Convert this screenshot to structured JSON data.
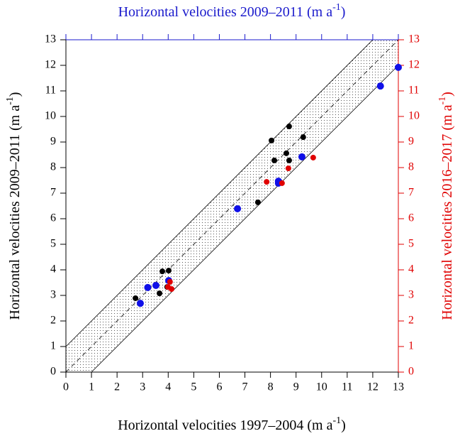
{
  "chart_data": {
    "type": "scatter",
    "title": {
      "text": "Horizontal velocities 2009–2011 (m a",
      "sup": "-1",
      "end": ")"
    },
    "xlabel": {
      "text": "Horizontal velocities 1997–2004 (m a",
      "sup": "-1",
      "end": ")"
    },
    "ylabel": {
      "text": "Horizontal velocities 2009–2011 (m a",
      "sup": "-1",
      "end": ")"
    },
    "y2label": {
      "text": "Horizontal velocities 2016–2017 (m a",
      "sup": "-1",
      "end": ")"
    },
    "xlim": [
      0,
      13
    ],
    "ylim": [
      0,
      13
    ],
    "y2lim": [
      0,
      13
    ],
    "xticks": [
      0,
      1,
      2,
      3,
      4,
      5,
      6,
      7,
      8,
      9,
      10,
      11,
      12,
      13
    ],
    "yticks": [
      0,
      1,
      2,
      3,
      4,
      5,
      6,
      7,
      8,
      9,
      10,
      11,
      12,
      13
    ],
    "y2ticks": [
      0,
      1,
      2,
      3,
      4,
      5,
      6,
      7,
      8,
      9,
      10,
      11,
      12,
      13
    ],
    "reference_line": {
      "slope": 1,
      "band": 1
    },
    "series": [
      {
        "color": "#000000",
        "x": [
          2.72,
          3.77,
          4.02,
          3.66,
          3.96,
          7.51,
          8.04,
          8.15,
          8.73,
          8.62,
          8.73,
          9.28
        ],
        "values": [
          2.89,
          3.94,
          3.97,
          3.08,
          3.33,
          6.64,
          9.06,
          8.28,
          9.61,
          8.56,
          8.28,
          9.19
        ]
      },
      {
        "color": "#1010e8",
        "x": [
          2.91,
          3.2,
          3.52,
          4.02,
          6.71,
          8.31,
          8.31,
          9.23,
          12.3,
          13.0
        ],
        "values": [
          2.69,
          3.31,
          3.39,
          3.58,
          6.39,
          7.47,
          7.39,
          8.42,
          11.19,
          11.92
        ]
      },
      {
        "color": "#e00000",
        "axis": "y2",
        "x": [
          4.07,
          3.99,
          4.13,
          7.85,
          8.45,
          8.7,
          9.67
        ],
        "values": [
          3.53,
          3.33,
          3.25,
          7.44,
          7.39,
          7.97,
          8.39
        ]
      }
    ]
  }
}
